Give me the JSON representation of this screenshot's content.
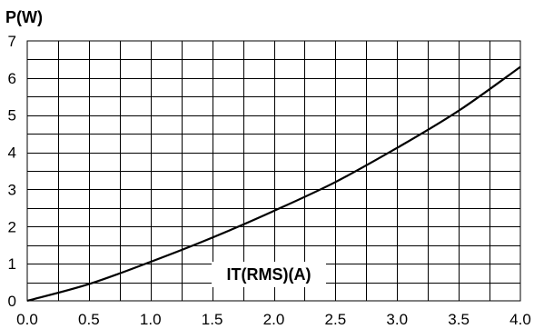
{
  "chart_data": {
    "type": "line",
    "ylabel": "P(W)",
    "xlabel": "IT(RMS)(A)",
    "xlim": [
      0,
      4.0
    ],
    "ylim": [
      0,
      7
    ],
    "x_ticks": [
      "0.0",
      "0.5",
      "1.0",
      "1.5",
      "2.0",
      "2.5",
      "3.0",
      "3.5",
      "4.0"
    ],
    "y_ticks": [
      "0",
      "1",
      "2",
      "3",
      "4",
      "5",
      "6",
      "7"
    ],
    "x_minor_step": 0.25,
    "y_minor_step": 0.5,
    "grid": true,
    "series": [
      {
        "x": [
          0,
          0.5,
          1.0,
          1.5,
          2.0,
          2.5,
          3.0,
          3.5,
          4.0
        ],
        "y": [
          0,
          0.45,
          1.05,
          1.7,
          2.42,
          3.2,
          4.12,
          5.12,
          6.3
        ]
      }
    ]
  }
}
